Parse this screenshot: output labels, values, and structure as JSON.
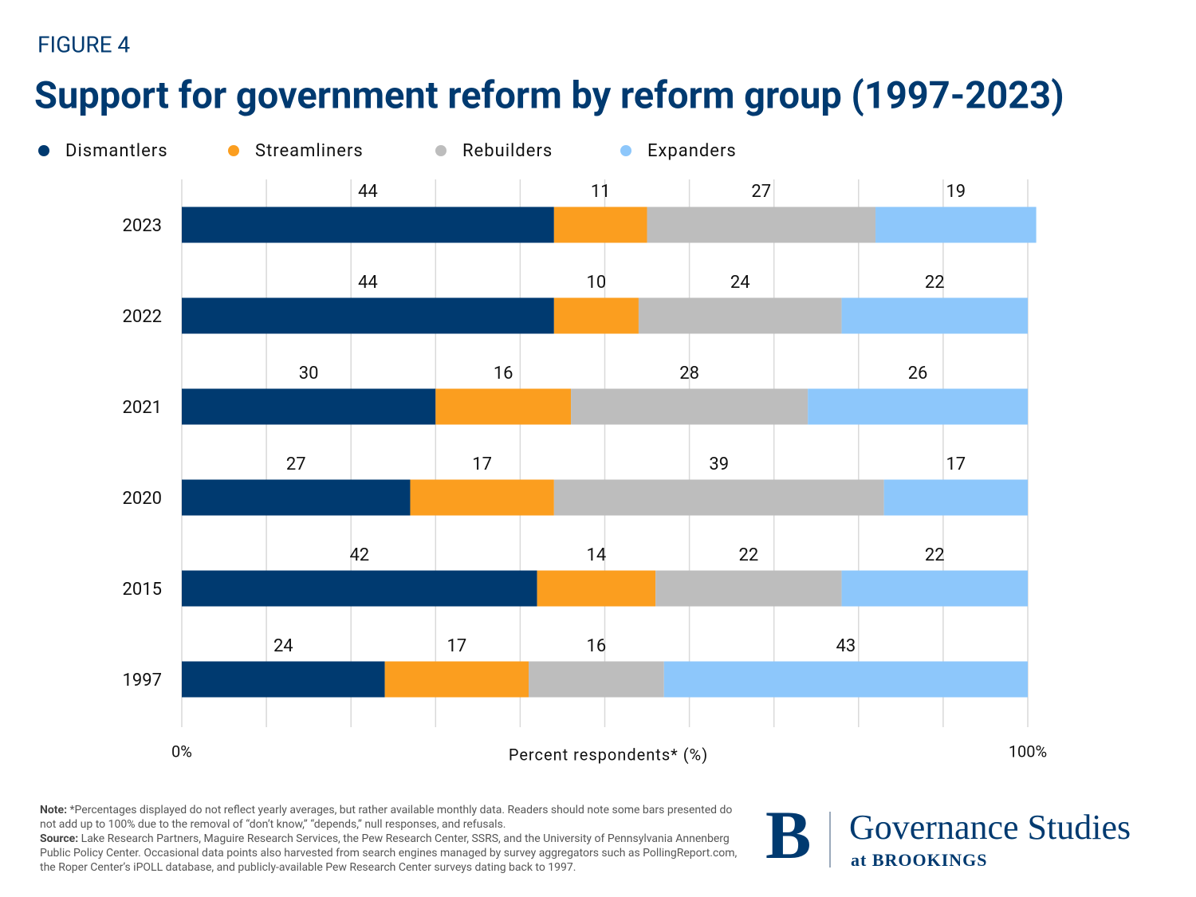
{
  "chart_data": {
    "type": "stacked-bar-horizontal",
    "figure_label": "FIGURE 4",
    "title": "Support for government reform by reform group (1997-2023)",
    "categories": [
      "2023",
      "2022",
      "2021",
      "2020",
      "2015",
      "1997"
    ],
    "series": [
      {
        "name": "Dismantlers",
        "color": "#003a70",
        "values": [
          44,
          44,
          30,
          27,
          42,
          24
        ]
      },
      {
        "name": "Streamliners",
        "color": "#fb9e1f",
        "values": [
          11,
          10,
          16,
          17,
          14,
          17
        ]
      },
      {
        "name": "Rebuilders",
        "color": "#bdbdbd",
        "values": [
          27,
          24,
          28,
          39,
          22,
          16
        ]
      },
      {
        "name": "Expanders",
        "color": "#8dc7fb",
        "values": [
          19,
          22,
          26,
          17,
          22,
          43
        ]
      }
    ],
    "xlabel": "Percent respondents* (%)",
    "xlim": [
      0,
      100
    ],
    "xticks": [
      {
        "value": 0,
        "label": "0%"
      },
      10,
      20,
      30,
      40,
      50,
      60,
      70,
      80,
      90,
      {
        "value": 100,
        "label": "100%"
      }
    ],
    "grid": true,
    "legend": "top"
  },
  "footer": {
    "note_label": "Note:",
    "note": "*Percentages displayed do not reflect yearly averages, but rather available monthly data. Readers should note some bars presented do not add up to 100% due to the removal of “don’t know,” “depends,” null responses, and refusals.",
    "source_label": "Source:",
    "source": "Lake Research Partners, Maguire Research Services, the Pew Research Center, SSRS, and the University of Pennsylvania Annenberg Public Policy Center. Occasional data points also harvested from search engines managed by survey aggregators such as PollingReport.com, the Roper Center’s iPOLL database, and publicly-available Pew Research Center surveys dating back to 1997.",
    "logo_letter": "B",
    "logo_title": "Governance Studies",
    "logo_subtitle": "at BROOKINGS"
  }
}
